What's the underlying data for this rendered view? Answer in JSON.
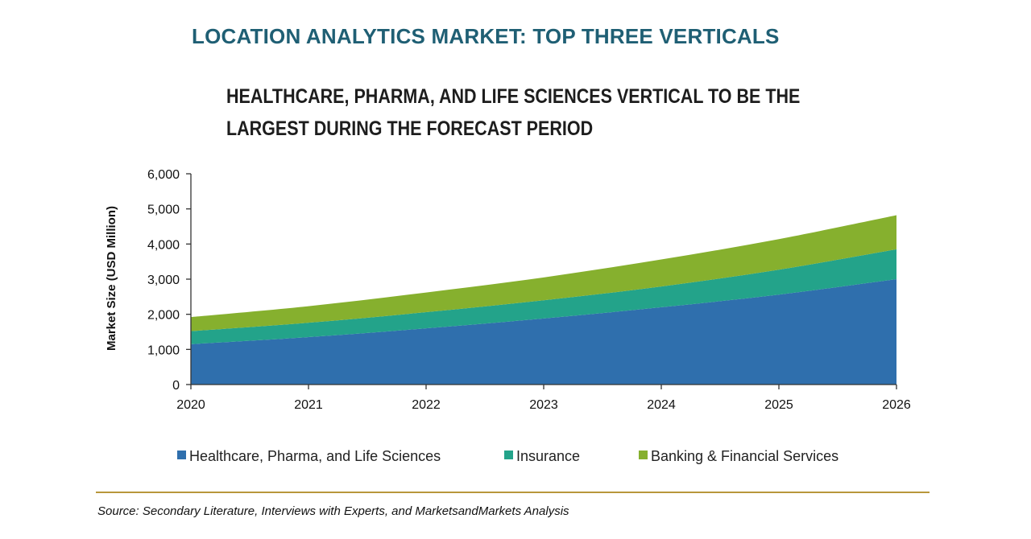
{
  "header": {
    "title": "LOCATION ANALYTICS MARKET: TOP THREE VERTICALS",
    "subtitle": "HEALTHCARE, PHARMA, AND LIFE SCIENCES VERTICAL TO BE THE LARGEST DURING THE FORECAST PERIOD"
  },
  "footer": {
    "source": "Source: Secondary Literature, Interviews with Experts, and MarketsandMarkets Analysis"
  },
  "colors": {
    "healthcare": "#2f6fad",
    "insurance": "#23a38a",
    "banking": "#86b02e",
    "axis": "#333333",
    "title": "#1f5f74",
    "rule": "#b8973a"
  },
  "chart_data": {
    "type": "area",
    "stacked": true,
    "title": "HEALTHCARE, PHARMA, AND LIFE SCIENCES VERTICAL TO BE THE LARGEST DURING THE FORECAST PERIOD",
    "xlabel": "",
    "ylabel": "Market Size (USD Million)",
    "categories": [
      "2020",
      "2021",
      "2022",
      "2023",
      "2024",
      "2025",
      "2026"
    ],
    "ylim": [
      0,
      6000
    ],
    "yticks": [
      0,
      1000,
      2000,
      3000,
      4000,
      5000,
      6000
    ],
    "ytick_labels": [
      "0",
      "1,000",
      "2,000",
      "3,000",
      "4,000",
      "5,000",
      "6,000"
    ],
    "grid": false,
    "legend_position": "bottom",
    "series": [
      {
        "name": "Healthcare, Pharma, and Life Sciences",
        "values": [
          1150,
          1350,
          1600,
          1880,
          2200,
          2560,
          3000
        ]
      },
      {
        "name": "Insurance",
        "values": [
          370,
          410,
          460,
          520,
          590,
          710,
          850
        ]
      },
      {
        "name": "Banking & Financial Services",
        "values": [
          400,
          470,
          560,
          650,
          770,
          870,
          970
        ]
      }
    ]
  }
}
